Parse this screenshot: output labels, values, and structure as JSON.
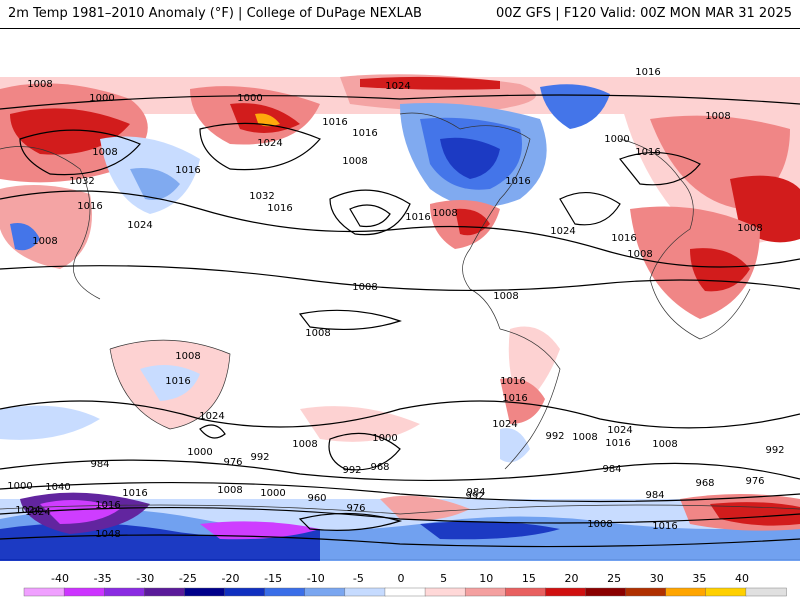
{
  "header": {
    "left_title": "2m Temp 1981–2010 Anomaly (°F) | College of DuPage NEXLAB",
    "right_title": "00Z GFS | F120 Valid: 00Z MON MAR 31 2025"
  },
  "map": {
    "projection": "global equirectangular",
    "isobar_labels": [
      "1016",
      "1008",
      "1000",
      "1024",
      "1000",
      "1008",
      "1016",
      "1016",
      "1024",
      "1016",
      "1000",
      "1016",
      "1008",
      "1008",
      "1032",
      "1016",
      "1024",
      "1032",
      "1016",
      "1008",
      "1016",
      "1016",
      "1024",
      "1016",
      "1008",
      "1008",
      "1008",
      "1008",
      "1008",
      "1008",
      "1016",
      "1016",
      "1008",
      "1024",
      "1016",
      "1024",
      "992",
      "1008",
      "1016",
      "1008",
      "1000",
      "984",
      "976",
      "992",
      "1008",
      "1000",
      "984",
      "968",
      "992",
      "960",
      "984",
      "976",
      "1000",
      "1008",
      "1016",
      "1024",
      "1016",
      "1048",
      "1000",
      "1024",
      "1040",
      "1008",
      "992",
      "984",
      "1016",
      "1024",
      "968",
      "976",
      "992"
    ],
    "colors": {
      "warm_light": "#fdd0d0",
      "warm_mid": "#f08080",
      "warm_strong": "#d01010",
      "warm_extreme": "#8b0000",
      "warm_hot": "#ffa500",
      "cold_light": "#c6dbff",
      "cold_mid": "#6a9cf0",
      "cold_strong": "#1a3fd0",
      "cold_extreme": "#00008b",
      "cold_purple": "#8a2be2",
      "cold_magenta": "#cc33ff"
    }
  },
  "legend": {
    "ticks": [
      "-40",
      "-35",
      "-30",
      "-25",
      "-20",
      "-15",
      "-10",
      "-5",
      "0",
      "5",
      "10",
      "15",
      "20",
      "25",
      "30",
      "35",
      "40"
    ],
    "colors": [
      "#f0a0ff",
      "#cc33ff",
      "#8a2be2",
      "#5a1a9a",
      "#00008b",
      "#1030c0",
      "#3a6ee8",
      "#7aa6f0",
      "#c6dbff",
      "#ffffff",
      "#ffd8d8",
      "#f4a0a0",
      "#e86060",
      "#d01010",
      "#8b0000",
      "#b03000",
      "#ffa500",
      "#ffd000",
      "#e0e0e0"
    ]
  }
}
